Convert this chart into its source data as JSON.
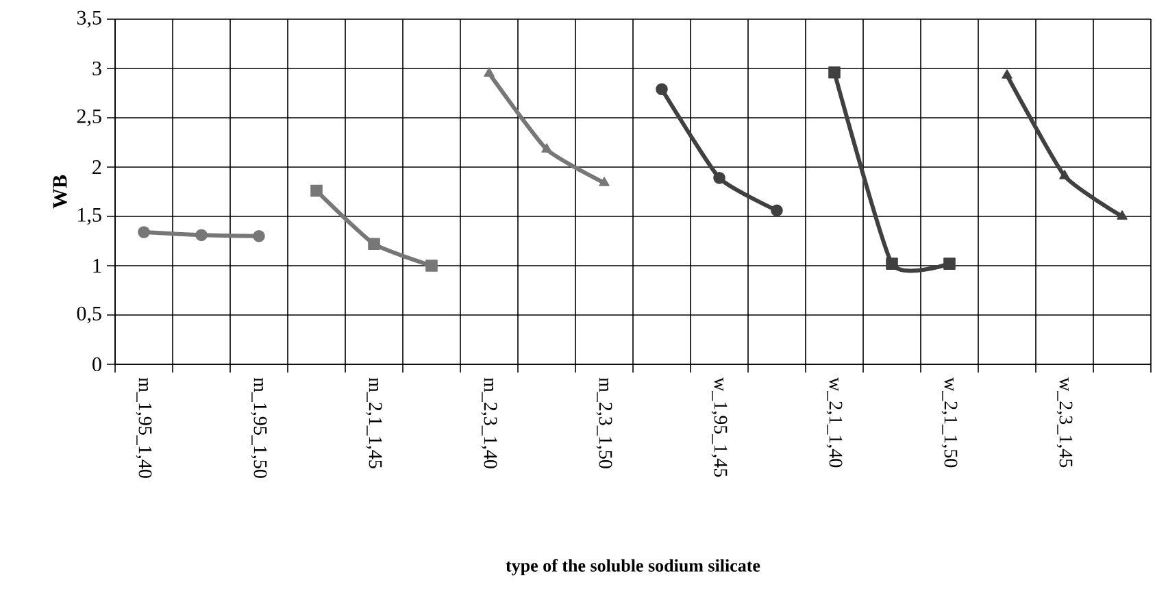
{
  "chart_data": {
    "type": "line",
    "xlabel": "type of the soluble sodium silicate",
    "ylabel": "WB",
    "categories": [
      "m_1,95_1,40",
      null,
      "m_1,95_1,50",
      null,
      "m_2,1_1,45",
      null,
      "m_2,3_1,40",
      null,
      "m_2,3_1,50",
      null,
      "w_1,95_1,45",
      null,
      "w_2,1_1,40",
      null,
      "w_2,1_1,50",
      null,
      "w_2,3_1,45",
      null
    ],
    "series": [
      {
        "color": "#777777",
        "marker": "circle",
        "values": [
          1.34,
          1.31,
          1.3,
          null,
          null,
          null,
          null,
          null,
          null,
          null,
          null,
          null,
          null,
          null,
          null,
          null,
          null,
          null
        ]
      },
      {
        "color": "#777777",
        "marker": "square",
        "values": [
          null,
          null,
          null,
          1.76,
          1.22,
          1.0,
          null,
          null,
          null,
          null,
          null,
          null,
          null,
          null,
          null,
          null,
          null,
          null
        ]
      },
      {
        "color": "#777777",
        "marker": "triangle",
        "values": [
          null,
          null,
          null,
          null,
          null,
          null,
          2.95,
          2.18,
          1.84,
          null,
          null,
          null,
          null,
          null,
          null,
          null,
          null,
          null
        ]
      },
      {
        "color": "#404040",
        "marker": "circle",
        "values": [
          null,
          null,
          null,
          null,
          null,
          null,
          null,
          null,
          null,
          2.79,
          1.89,
          1.56,
          null,
          null,
          null,
          null,
          null,
          null
        ]
      },
      {
        "color": "#404040",
        "marker": "square",
        "values": [
          null,
          null,
          null,
          null,
          null,
          null,
          null,
          null,
          null,
          null,
          null,
          null,
          2.96,
          1.02,
          1.02,
          null,
          null,
          null
        ]
      },
      {
        "color": "#404040",
        "marker": "triangle",
        "values": [
          null,
          null,
          null,
          null,
          null,
          null,
          null,
          null,
          null,
          null,
          null,
          null,
          null,
          null,
          null,
          2.93,
          1.91,
          1.5
        ]
      }
    ],
    "ylim": [
      0,
      3.5
    ],
    "yticks": [
      0,
      {
        "value": 0.5,
        "label": "0,5"
      },
      1,
      {
        "value": 1.5,
        "label": "1,5"
      },
      2,
      {
        "value": 2.5,
        "label": "2,5"
      },
      3,
      {
        "value": 3.5,
        "label": "3,5"
      }
    ],
    "grid": true,
    "line_style": "solid"
  }
}
